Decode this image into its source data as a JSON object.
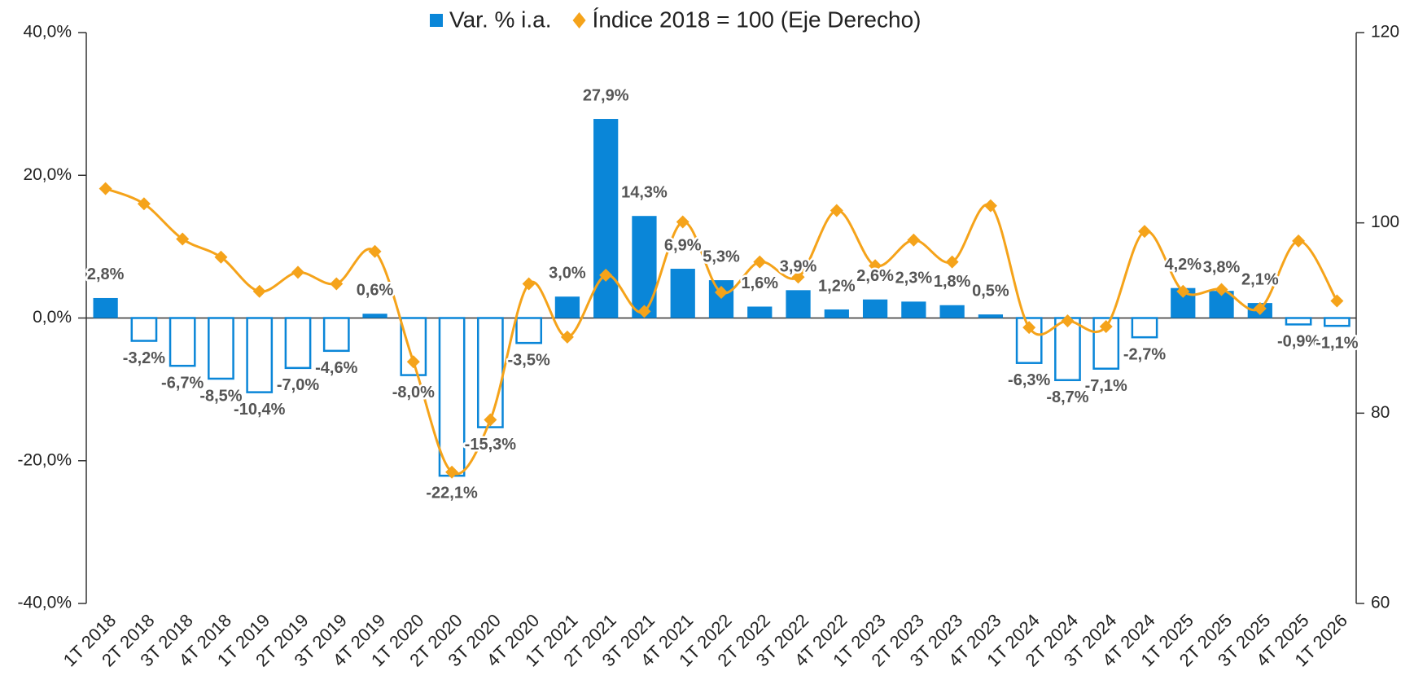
{
  "chart_data": {
    "type": "bar_line",
    "categories": [
      "1T 2018",
      "2T 2018",
      "3T 2018",
      "4T 2018",
      "1T 2019",
      "2T 2019",
      "3T 2019",
      "4T 2019",
      "1T 2020",
      "2T 2020",
      "3T 2020",
      "4T 2020",
      "1T 2021",
      "2T 2021",
      "3T 2021",
      "4T 2021",
      "1T 2022",
      "2T 2022",
      "3T 2022",
      "4T 2022",
      "1T 2023",
      "2T 2023",
      "3T 2023",
      "4T 2023",
      "1T 2024",
      "2T 2024",
      "3T 2024",
      "4T 2024",
      "1T 2025",
      "2T 2025",
      "3T 2025",
      "4T 2025",
      "1T 2026"
    ],
    "series": [
      {
        "name": "Var. % i.a.",
        "color": "#0a86d8",
        "type": "bar",
        "values": [
          2.8,
          -3.2,
          -6.7,
          -8.5,
          -10.4,
          -7.0,
          -4.6,
          0.6,
          -8.0,
          -22.1,
          -15.3,
          -3.5,
          3.0,
          27.9,
          14.3,
          6.9,
          5.3,
          1.6,
          3.9,
          1.2,
          2.6,
          2.3,
          1.8,
          0.5,
          -6.3,
          -8.7,
          -7.1,
          -2.7,
          4.2,
          3.8,
          2.1,
          -0.9,
          -1.1
        ],
        "value_labels": [
          "2,8%",
          "-3,2%",
          "-6,7%",
          "-8,5%",
          "-10,4%",
          "-7,0%",
          "-4,6%",
          "0,6%",
          "-8,0%",
          "-22,1%",
          "-15,3%",
          "-3,5%",
          "3,0%",
          "27,9%",
          "14,3%",
          "6,9%",
          "5,3%",
          "1,6%",
          "3,9%",
          "1,2%",
          "2,6%",
          "2,3%",
          "1,8%",
          "0,5%",
          "-6,3%",
          "-8,7%",
          "-7,1%",
          "-2,7%",
          "4,2%",
          "3,8%",
          "2,1%",
          "-0,9%",
          "-1,1%"
        ]
      },
      {
        "name": "Índice 2018 = 100 (Eje Derecho)",
        "color": "#f5a31a",
        "type": "line",
        "axis": "y2",
        "values": [
          103.6,
          102.0,
          98.3,
          96.4,
          92.8,
          94.8,
          93.6,
          97.0,
          85.4,
          73.8,
          79.3,
          93.6,
          88.0,
          94.5,
          90.7,
          100.1,
          92.7,
          95.9,
          94.3,
          101.3,
          95.5,
          98.2,
          95.9,
          101.8,
          89.0,
          89.7,
          89.1,
          99.1,
          92.8,
          93.0,
          91.0,
          98.1,
          91.8
        ]
      }
    ],
    "ylim": [
      -40,
      40
    ],
    "yticks": [
      {
        "value": -40,
        "label": "-40,0%"
      },
      {
        "value": -20,
        "label": "-20,0%"
      },
      {
        "value": 0,
        "label": "0,0%"
      },
      {
        "value": 20,
        "label": "20,0%"
      },
      {
        "value": 40,
        "label": "40,0%"
      }
    ],
    "y2lim": [
      60,
      120
    ],
    "y2ticks": [
      60,
      80,
      100,
      120
    ],
    "legend": "top"
  }
}
